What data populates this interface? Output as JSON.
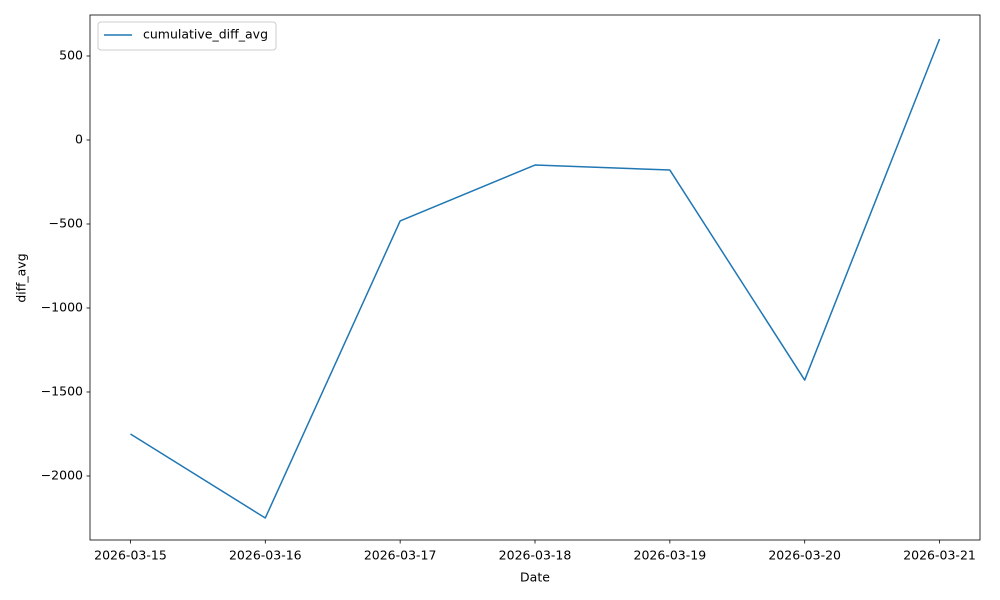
{
  "chart_data": {
    "type": "line",
    "xlabel": "Date",
    "ylabel": "diff_avg",
    "x": [
      "2026-03-15",
      "2026-03-16",
      "2026-03-17",
      "2026-03-18",
      "2026-03-19",
      "2026-03-20",
      "2026-03-21"
    ],
    "series": [
      {
        "name": "cumulative_diff_avg",
        "color": "#1f77b4",
        "values": [
          -1750,
          -2250,
          -482,
          -149,
          -179,
          -1429,
          601
        ]
      }
    ],
    "xlim": [
      "2026-03-14T16:48:00Z",
      "2026-03-21T07:12:00Z"
    ],
    "xticks": [
      "2026-03-15",
      "2026-03-16",
      "2026-03-17",
      "2026-03-18",
      "2026-03-19",
      "2026-03-20",
      "2026-03-21"
    ],
    "ylim": [
      -2381,
      744
    ],
    "yticks": [
      {
        "value": -2000,
        "label": "−2000"
      },
      {
        "value": -1500,
        "label": "−1500"
      },
      {
        "value": -1000,
        "label": "−1000"
      },
      {
        "value": -500,
        "label": "−500"
      },
      0,
      500
    ],
    "legend": "upper left",
    "grid": false
  }
}
